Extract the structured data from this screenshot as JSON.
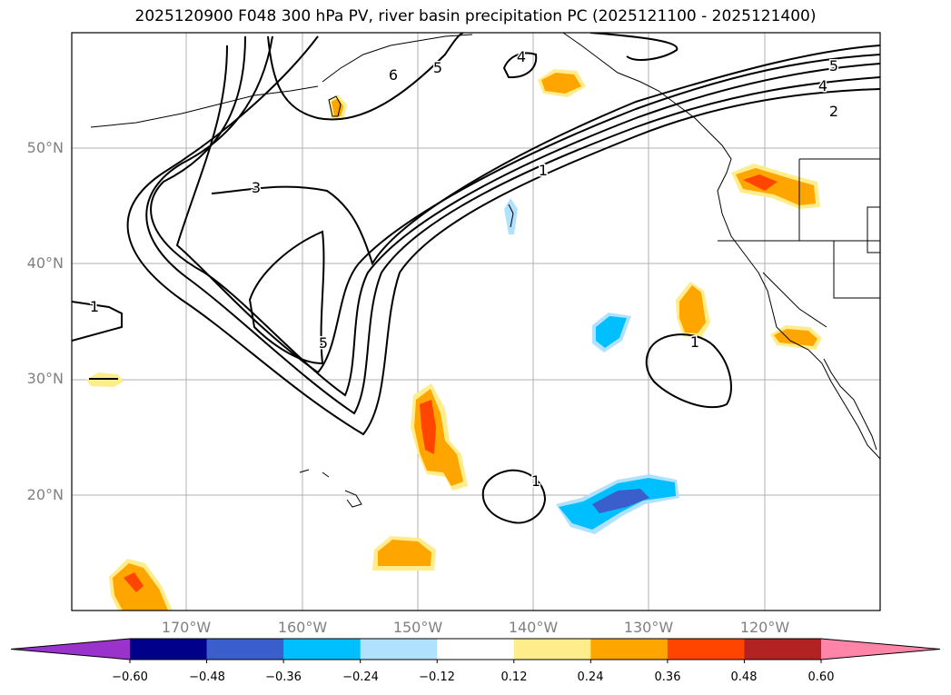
{
  "title": "2025120900 F048 300 hPa PV, river basin precipitation PC (2025121100 - 2025121400)",
  "map": {
    "lat_ticks": [
      "20°N",
      "30°N",
      "40°N",
      "50°N"
    ],
    "lon_ticks": [
      "170°W",
      "160°W",
      "150°W",
      "140°W",
      "130°W",
      "120°W"
    ],
    "lat_range": [
      10,
      60
    ],
    "lon_range": [
      -180,
      -110
    ],
    "contour_labels": [
      "1",
      "1",
      "1",
      "1",
      "2",
      "3",
      "4",
      "4",
      "5",
      "5",
      "5",
      "6"
    ]
  },
  "colorbar": {
    "labels": [
      "−0.60",
      "−0.48",
      "−0.36",
      "−0.24",
      "−0.12",
      "0.12",
      "0.24",
      "0.36",
      "0.48",
      "0.60"
    ],
    "colors": [
      "#9933cc",
      "#00008b",
      "#3a5fcd",
      "#00bfff",
      "#b0e2ff",
      "#ffffff",
      "#ffec8b",
      "#ffa500",
      "#ff4500",
      "#b22222",
      "#ff85a8"
    ]
  }
}
